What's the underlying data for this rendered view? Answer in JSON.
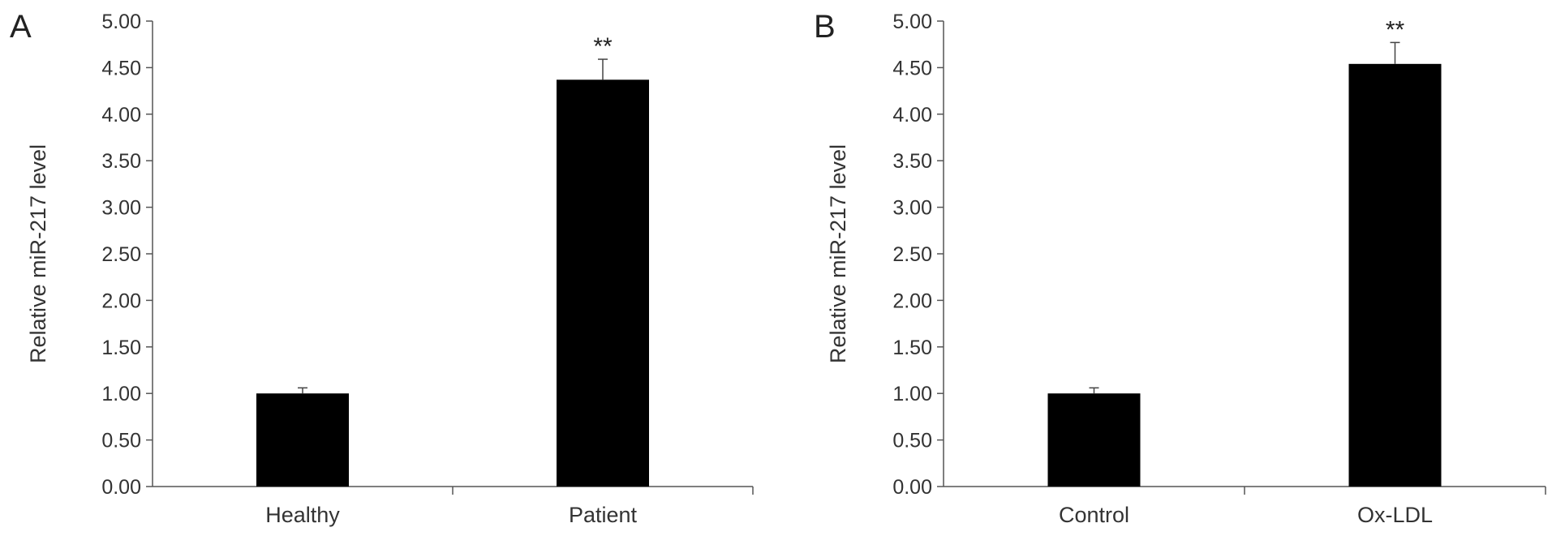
{
  "chart_data": [
    {
      "type": "bar",
      "panel_label": "A",
      "categories": [
        "Healthy",
        "Patient"
      ],
      "values": [
        1.0,
        4.37
      ],
      "errors": [
        0.06,
        0.22
      ],
      "significance": [
        "",
        "**"
      ],
      "ylabel": "Relative miR-217 level",
      "xlabel": "",
      "ylim": [
        0,
        5
      ],
      "yticks": [
        "0.00",
        "0.50",
        "1.00",
        "1.50",
        "2.00",
        "2.50",
        "3.00",
        "3.50",
        "4.00",
        "4.50",
        "5.00"
      ],
      "bar_color": "#000000",
      "grid": false
    },
    {
      "type": "bar",
      "panel_label": "B",
      "categories": [
        "Control",
        "Ox-LDL"
      ],
      "values": [
        1.0,
        4.54
      ],
      "errors": [
        0.06,
        0.23
      ],
      "significance": [
        "",
        "**"
      ],
      "ylabel": "Relative miR-217 level",
      "xlabel": "",
      "ylim": [
        0,
        5
      ],
      "yticks": [
        "0.00",
        "0.50",
        "1.00",
        "1.50",
        "2.00",
        "2.50",
        "3.00",
        "3.50",
        "4.00",
        "4.50",
        "5.00"
      ],
      "bar_color": "#000000",
      "grid": false
    }
  ]
}
